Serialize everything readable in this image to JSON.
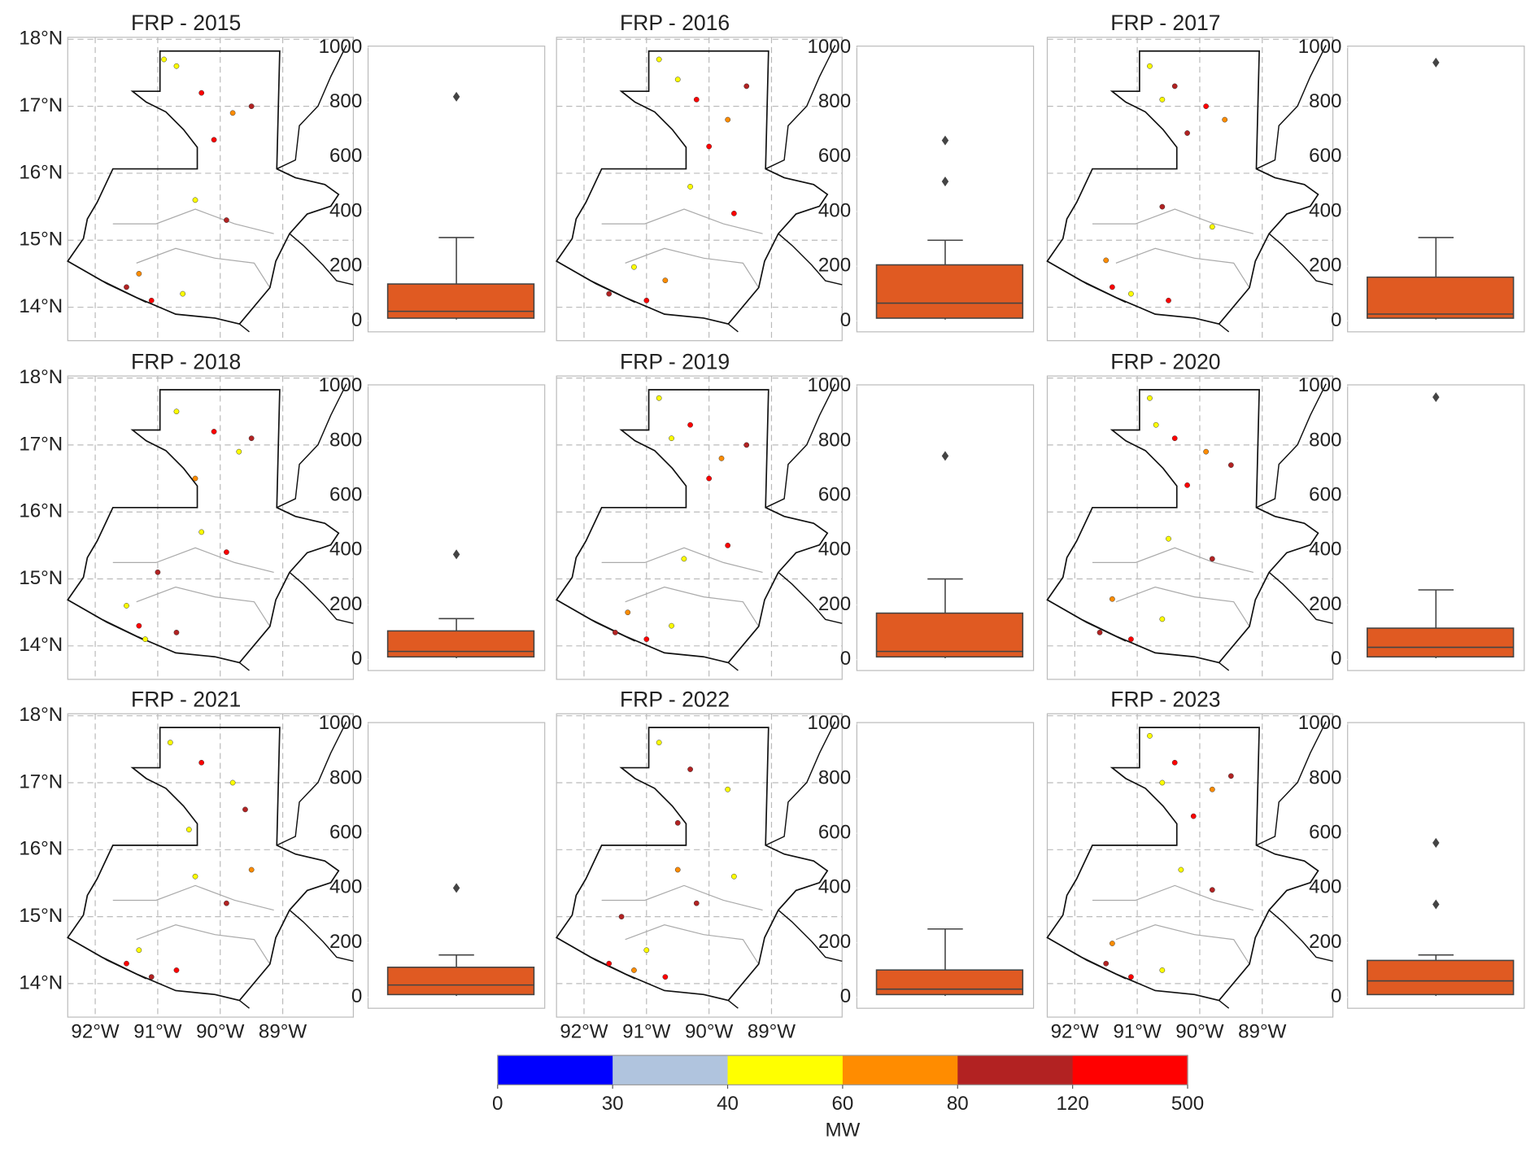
{
  "chart_data": [
    {
      "type": "map",
      "xlim": [
        -92.44,
        -87.87
      ],
      "ylim": [
        13.5,
        18.03
      ],
      "xticks": [
        {
          "value": -92,
          "label": "92°W"
        },
        {
          "value": -91,
          "label": "91°W"
        },
        {
          "value": -90,
          "label": "90°W"
        },
        {
          "value": -89,
          "label": "89°W"
        }
      ],
      "yticks": [
        {
          "value": 14,
          "label": "14°N"
        },
        {
          "value": 15,
          "label": "15°N"
        },
        {
          "value": 16,
          "label": "16°N"
        },
        {
          "value": 17,
          "label": "17°N"
        },
        {
          "value": 18,
          "label": "18°N"
        }
      ],
      "grid": true,
      "colorbar": {
        "bounds": [
          0,
          30,
          40,
          60,
          80,
          120,
          500
        ],
        "colors": [
          "#0000ff",
          "#b0c4de",
          "#ffff00",
          "#ff8c00",
          "#b22222",
          "#ff0000"
        ],
        "label": "MW"
      },
      "panels": [
        {
          "title": "FRP - 2015",
          "x": [
            -90.7,
            -90.3,
            -89.8,
            -89.5,
            -90.9,
            -90.1,
            -91.5,
            -91.1,
            -90.6,
            -91.3,
            -89.9,
            -90.4
          ],
          "y": [
            17.6,
            17.2,
            16.9,
            17.0,
            17.7,
            16.5,
            14.3,
            14.1,
            14.2,
            14.5,
            15.3,
            15.6
          ],
          "values": [
            45,
            130,
            70,
            95,
            55,
            150,
            85,
            200,
            50,
            65,
            110,
            42
          ]
        },
        {
          "title": "FRP - 2016",
          "x": [
            -90.8,
            -90.2,
            -89.7,
            -89.4,
            -90.5,
            -90.0,
            -91.6,
            -91.0,
            -90.7,
            -91.2,
            -89.6,
            -90.3
          ],
          "y": [
            17.7,
            17.1,
            16.8,
            17.3,
            17.4,
            16.4,
            14.2,
            14.1,
            14.4,
            14.6,
            15.4,
            15.8
          ],
          "values": [
            50,
            140,
            75,
            90,
            48,
            125,
            100,
            180,
            62,
            44,
            160,
            58
          ]
        },
        {
          "title": "FRP - 2017",
          "x": [
            -90.8,
            -90.4,
            -89.9,
            -89.6,
            -90.6,
            -90.2,
            -91.4,
            -91.1,
            -90.5,
            -91.5,
            -89.8,
            -90.6
          ],
          "y": [
            17.6,
            17.3,
            17.0,
            16.8,
            17.1,
            16.6,
            14.3,
            14.2,
            14.1,
            14.7,
            15.2,
            15.5
          ],
          "values": [
            42,
            98,
            160,
            65,
            52,
            88,
            130,
            47,
            210,
            72,
            56,
            115
          ]
        },
        {
          "title": "FRP - 2018",
          "x": [
            -90.7,
            -90.1,
            -89.7,
            -89.5,
            -90.4,
            -91.3,
            -91.2,
            -90.7,
            -91.5,
            -89.9,
            -90.3,
            -91.0
          ],
          "y": [
            17.5,
            17.2,
            16.9,
            17.1,
            16.5,
            14.3,
            14.1,
            14.2,
            14.6,
            15.4,
            15.7,
            15.1
          ],
          "values": [
            48,
            130,
            55,
            90,
            62,
            150,
            44,
            95,
            58,
            120,
            46,
            85
          ]
        },
        {
          "title": "FRP - 2019",
          "x": [
            -90.8,
            -90.3,
            -89.8,
            -89.4,
            -90.6,
            -90.0,
            -91.5,
            -91.0,
            -90.6,
            -91.3,
            -89.7,
            -90.4
          ],
          "y": [
            17.7,
            17.3,
            16.8,
            17.0,
            17.1,
            16.5,
            14.2,
            14.1,
            14.3,
            14.5,
            15.5,
            15.3
          ],
          "values": [
            55,
            145,
            78,
            102,
            46,
            170,
            92,
            220,
            49,
            68,
            125,
            57
          ]
        },
        {
          "title": "FRP - 2020",
          "x": [
            -90.8,
            -90.4,
            -89.9,
            -89.5,
            -90.7,
            -90.2,
            -91.6,
            -91.1,
            -90.6,
            -91.4,
            -89.8,
            -90.5
          ],
          "y": [
            17.7,
            17.1,
            16.9,
            16.7,
            17.3,
            16.4,
            14.2,
            14.1,
            14.4,
            14.7,
            15.3,
            15.6
          ],
          "values": [
            44,
            135,
            65,
            88,
            52,
            160,
            105,
            190,
            47,
            70,
            112,
            59
          ]
        },
        {
          "title": "FRP - 2021",
          "x": [
            -90.8,
            -90.3,
            -89.8,
            -89.6,
            -90.5,
            -91.5,
            -91.1,
            -90.7,
            -91.3,
            -89.9,
            -90.4,
            -89.5
          ],
          "y": [
            17.6,
            17.3,
            17.0,
            16.6,
            16.3,
            14.3,
            14.1,
            14.2,
            14.5,
            15.2,
            15.6,
            15.7
          ],
          "values": [
            47,
            128,
            58,
            95,
            50,
            140,
            82,
            165,
            44,
            100,
            53,
            61
          ]
        },
        {
          "title": "FRP - 2022",
          "x": [
            -90.8,
            -90.3,
            -89.7,
            -90.5,
            -91.6,
            -91.2,
            -90.7,
            -91.0,
            -90.2,
            -89.6,
            -90.5,
            -91.4
          ],
          "y": [
            17.6,
            17.2,
            16.9,
            16.4,
            14.3,
            14.2,
            14.1,
            14.5,
            15.2,
            15.6,
            15.7,
            15.0
          ],
          "values": [
            52,
            118,
            46,
            80,
            145,
            60,
            190,
            43,
            92,
            56,
            66,
            108
          ]
        },
        {
          "title": "FRP - 2023",
          "x": [
            -90.8,
            -90.4,
            -89.8,
            -89.5,
            -90.6,
            -90.1,
            -91.5,
            -91.1,
            -90.6,
            -91.4,
            -89.8,
            -90.3
          ],
          "y": [
            17.7,
            17.3,
            16.9,
            17.1,
            17.0,
            16.5,
            14.3,
            14.1,
            14.2,
            14.6,
            15.4,
            15.7
          ],
          "values": [
            58,
            150,
            72,
            98,
            45,
            132,
            88,
            205,
            53,
            64,
            117,
            49
          ]
        }
      ]
    },
    {
      "type": "box",
      "ylim": [
        -40,
        1005
      ],
      "yticks": [
        0,
        200,
        400,
        600,
        800,
        1000
      ],
      "color": "#e05a22",
      "panels": [
        {
          "whislo": 5,
          "q1": 10,
          "med": 35,
          "q3": 135,
          "whishi": 305,
          "fliers": [
            820
          ]
        },
        {
          "whislo": 5,
          "q1": 10,
          "med": 65,
          "q3": 205,
          "whishi": 295,
          "fliers": [
            510,
            660
          ]
        },
        {
          "whislo": 5,
          "q1": 10,
          "med": 25,
          "q3": 160,
          "whishi": 305,
          "fliers": [
            945
          ]
        },
        {
          "whislo": 5,
          "q1": 10,
          "med": 30,
          "q3": 105,
          "whishi": 150,
          "fliers": [
            385
          ]
        },
        {
          "whislo": 5,
          "q1": 10,
          "med": 30,
          "q3": 170,
          "whishi": 295,
          "fliers": [
            745
          ]
        },
        {
          "whislo": 5,
          "q1": 10,
          "med": 45,
          "q3": 115,
          "whishi": 255,
          "fliers": [
            960
          ]
        },
        {
          "whislo": 5,
          "q1": 10,
          "med": 45,
          "q3": 110,
          "whishi": 155,
          "fliers": [
            400
          ]
        },
        {
          "whislo": 5,
          "q1": 10,
          "med": 30,
          "q3": 100,
          "whishi": 250,
          "fliers": []
        },
        {
          "whislo": 5,
          "q1": 10,
          "med": 60,
          "q3": 135,
          "whishi": 155,
          "fliers": [
            340,
            565
          ]
        }
      ]
    }
  ]
}
